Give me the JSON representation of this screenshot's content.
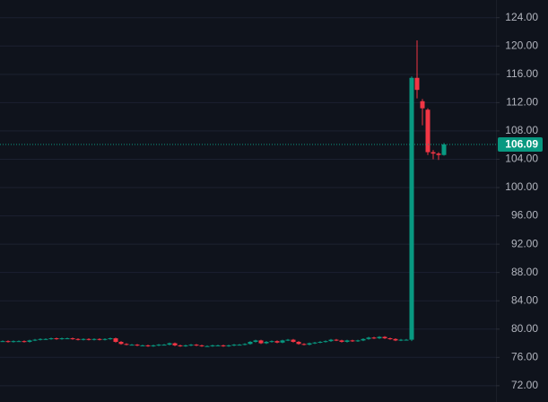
{
  "chart_data": {
    "type": "candlestick",
    "up_color": "#089981",
    "down_color": "#f23645",
    "ylim": [
      69.7,
      126.5
    ],
    "yticks": [
      {
        "value": 72,
        "label": "72.00"
      },
      {
        "value": 76,
        "label": "76.00"
      },
      {
        "value": 80,
        "label": "80.00"
      },
      {
        "value": 84,
        "label": "84.00"
      },
      {
        "value": 88,
        "label": "88.00"
      },
      {
        "value": 92,
        "label": "92.00"
      },
      {
        "value": 96,
        "label": "96.00"
      },
      {
        "value": 100,
        "label": "100.00"
      },
      {
        "value": 104,
        "label": "104.00"
      },
      {
        "value": 108,
        "label": "108.00"
      },
      {
        "value": 112,
        "label": "112.00"
      },
      {
        "value": 116,
        "label": "116.00"
      },
      {
        "value": 120,
        "label": "120.00"
      },
      {
        "value": 124,
        "label": "124.00"
      }
    ],
    "grid": true,
    "last_price": 106.09,
    "open": [
      78.3,
      78.3,
      78.2,
      78.3,
      78.3,
      78.2,
      78.4,
      78.5,
      78.6,
      78.6,
      78.7,
      78.6,
      78.7,
      78.7,
      78.6,
      78.5,
      78.6,
      78.5,
      78.6,
      78.5,
      78.6,
      78.7,
      78.2,
      77.9,
      77.8,
      77.8,
      77.7,
      77.7,
      77.6,
      77.7,
      77.8,
      77.8,
      78.0,
      77.7,
      77.6,
      77.7,
      77.8,
      77.7,
      77.6,
      77.6,
      77.7,
      77.7,
      77.6,
      77.7,
      77.8,
      77.8,
      77.9,
      78.2,
      78.4,
      78.0,
      78.2,
      78.3,
      78.1,
      78.4,
      78.5,
      78.2,
      77.9,
      77.8,
      78.0,
      78.1,
      78.2,
      78.3,
      78.5,
      78.4,
      78.2,
      78.4,
      78.3,
      78.4,
      78.6,
      78.8,
      78.7,
      78.9,
      78.7,
      78.6,
      78.4,
      78.5,
      78.5,
      115.5,
      112.2,
      111.0,
      105.0,
      104.8,
      104.6
    ],
    "high": [
      78.4,
      78.4,
      78.4,
      78.4,
      78.4,
      78.5,
      78.6,
      78.7,
      78.7,
      78.8,
      78.8,
      78.8,
      78.8,
      78.8,
      78.7,
      78.7,
      78.7,
      78.7,
      78.7,
      78.7,
      78.8,
      78.8,
      78.3,
      78.0,
      77.9,
      77.9,
      77.8,
      77.8,
      77.8,
      77.9,
      77.9,
      78.1,
      78.1,
      77.8,
      77.8,
      77.9,
      77.9,
      77.8,
      77.7,
      77.8,
      77.8,
      77.8,
      77.8,
      77.9,
      77.9,
      78.0,
      78.3,
      78.5,
      78.5,
      78.3,
      78.4,
      78.4,
      78.5,
      78.6,
      78.6,
      78.3,
      78.0,
      78.1,
      78.2,
      78.3,
      78.4,
      78.6,
      78.6,
      78.5,
      78.5,
      78.5,
      78.5,
      78.7,
      78.9,
      78.9,
      79.0,
      79.0,
      78.8,
      78.7,
      78.6,
      78.6,
      115.7,
      120.8,
      112.5,
      111.2,
      105.3,
      105.0,
      106.3
    ],
    "low": [
      78.2,
      78.1,
      78.1,
      78.2,
      78.1,
      78.1,
      78.3,
      78.4,
      78.5,
      78.5,
      78.5,
      78.5,
      78.6,
      78.5,
      78.4,
      78.4,
      78.4,
      78.4,
      78.4,
      78.4,
      78.5,
      78.1,
      77.8,
      77.7,
      77.7,
      77.6,
      77.6,
      77.5,
      77.5,
      77.6,
      77.7,
      77.7,
      77.6,
      77.5,
      77.5,
      77.6,
      77.6,
      77.5,
      77.5,
      77.5,
      77.6,
      77.5,
      77.5,
      77.6,
      77.7,
      77.7,
      77.8,
      78.1,
      77.9,
      77.9,
      78.1,
      78.0,
      78.0,
      78.3,
      78.1,
      77.8,
      77.7,
      77.7,
      77.9,
      78.0,
      78.1,
      78.2,
      78.3,
      78.1,
      78.1,
      78.2,
      78.2,
      78.3,
      78.5,
      78.6,
      78.6,
      78.6,
      78.5,
      78.3,
      78.3,
      78.4,
      78.3,
      112.6,
      108.8,
      104.6,
      104.0,
      103.9,
      104.5
    ],
    "close": [
      78.3,
      78.2,
      78.3,
      78.3,
      78.2,
      78.4,
      78.5,
      78.6,
      78.6,
      78.7,
      78.6,
      78.7,
      78.7,
      78.6,
      78.5,
      78.6,
      78.5,
      78.6,
      78.5,
      78.6,
      78.7,
      78.2,
      77.9,
      77.8,
      77.8,
      77.7,
      77.7,
      77.6,
      77.7,
      77.8,
      77.8,
      78.0,
      77.7,
      77.6,
      77.7,
      77.8,
      77.7,
      77.6,
      77.6,
      77.7,
      77.7,
      77.6,
      77.7,
      77.8,
      77.8,
      77.9,
      78.2,
      78.4,
      78.0,
      78.2,
      78.3,
      78.1,
      78.4,
      78.5,
      78.2,
      77.9,
      77.8,
      78.0,
      78.1,
      78.2,
      78.3,
      78.5,
      78.4,
      78.2,
      78.4,
      78.3,
      78.4,
      78.6,
      78.8,
      78.7,
      78.9,
      78.7,
      78.6,
      78.4,
      78.5,
      78.5,
      115.5,
      113.8,
      111.2,
      105.0,
      104.8,
      104.6,
      106.09
    ]
  }
}
